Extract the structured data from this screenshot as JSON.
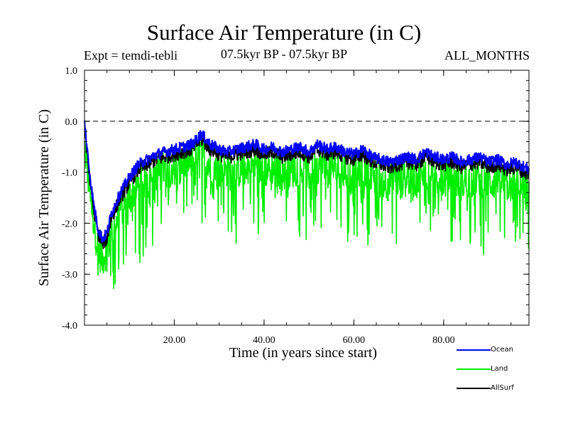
{
  "header": {
    "title": "Surface Air Temperature (in C)",
    "experiment": "Expt = temdi-tebli",
    "period": "07.5kyr BP - 07.5kyr BP",
    "months": "ALL_MONTHS"
  },
  "chart_data": {
    "type": "line",
    "title": "Surface Air Temperature (in C)",
    "xlabel": "Time (in years since start)",
    "ylabel": "Surface Air Temperature (in C)",
    "xlim": [
      0,
      99
    ],
    "ylim": [
      -4.0,
      1.0
    ],
    "x_ticks": [
      20,
      40,
      60,
      80
    ],
    "x_tick_labels": [
      "20.00",
      "40.00",
      "60.00",
      "80.00"
    ],
    "y_ticks": [
      1.0,
      0.0,
      -1.0,
      -2.0,
      -3.0,
      -4.0
    ],
    "y_tick_labels": [
      "1.0",
      "0.0",
      "-1.0",
      "-2.0",
      "-3.0",
      "-4.0"
    ],
    "reference_line": 0.0,
    "legend_position": "bottom-right",
    "series": [
      {
        "name": "Ocean",
        "color": "#0000ff",
        "x": [
          0,
          1,
          2,
          3,
          4,
          5,
          6,
          8,
          10,
          12,
          14,
          16,
          18,
          20,
          22,
          24,
          26,
          28,
          30,
          32,
          34,
          36,
          38,
          40,
          42,
          44,
          46,
          48,
          50,
          52,
          54,
          56,
          58,
          60,
          62,
          64,
          66,
          68,
          70,
          72,
          74,
          76,
          78,
          80,
          82,
          84,
          86,
          88,
          90,
          92,
          94,
          96,
          98,
          99
        ],
        "values": [
          0.0,
          -0.9,
          -1.6,
          -2.1,
          -2.3,
          -2.2,
          -1.8,
          -1.4,
          -1.1,
          -0.85,
          -0.75,
          -0.65,
          -0.6,
          -0.55,
          -0.5,
          -0.45,
          -0.25,
          -0.45,
          -0.55,
          -0.6,
          -0.55,
          -0.5,
          -0.45,
          -0.55,
          -0.5,
          -0.6,
          -0.55,
          -0.5,
          -0.6,
          -0.45,
          -0.55,
          -0.5,
          -0.6,
          -0.65,
          -0.55,
          -0.7,
          -0.75,
          -0.8,
          -0.75,
          -0.7,
          -0.75,
          -0.6,
          -0.7,
          -0.75,
          -0.7,
          -0.8,
          -0.75,
          -0.7,
          -0.8,
          -0.75,
          -0.85,
          -0.8,
          -0.9,
          -0.95
        ],
        "noise": 0.22
      },
      {
        "name": "Land",
        "color": "#00ee00",
        "x": [
          0,
          1,
          2,
          3,
          4,
          5,
          6,
          8,
          10,
          12,
          14,
          16,
          18,
          20,
          22,
          24,
          26,
          28,
          30,
          32,
          34,
          36,
          38,
          40,
          42,
          44,
          46,
          48,
          50,
          52,
          54,
          56,
          58,
          60,
          62,
          64,
          66,
          68,
          70,
          72,
          74,
          76,
          78,
          80,
          82,
          84,
          86,
          88,
          90,
          92,
          94,
          96,
          98,
          99
        ],
        "values": [
          -0.5,
          -1.2,
          -1.9,
          -2.5,
          -2.7,
          -2.5,
          -2.2,
          -1.7,
          -1.5,
          -1.25,
          -1.1,
          -1.0,
          -0.95,
          -0.9,
          -0.85,
          -0.8,
          -0.6,
          -0.85,
          -0.95,
          -1.0,
          -0.95,
          -0.9,
          -0.85,
          -0.95,
          -0.9,
          -1.0,
          -0.95,
          -0.9,
          -1.0,
          -0.85,
          -0.95,
          -0.9,
          -1.0,
          -1.05,
          -0.95,
          -1.1,
          -1.15,
          -1.2,
          -1.15,
          -1.1,
          -1.15,
          -1.0,
          -1.1,
          -1.15,
          -1.1,
          -1.2,
          -1.15,
          -1.1,
          -1.2,
          -1.15,
          -1.25,
          -1.2,
          -1.3,
          -1.35
        ],
        "noise": 0.75,
        "min": -3.4,
        "max": 0.25
      },
      {
        "name": "AllSurf",
        "color": "#000000",
        "x": [
          0,
          1,
          2,
          3,
          4,
          5,
          6,
          8,
          10,
          12,
          14,
          16,
          18,
          20,
          22,
          24,
          26,
          28,
          30,
          32,
          34,
          36,
          38,
          40,
          42,
          44,
          46,
          48,
          50,
          52,
          54,
          56,
          58,
          60,
          62,
          64,
          66,
          68,
          70,
          72,
          74,
          76,
          78,
          80,
          82,
          84,
          86,
          88,
          90,
          92,
          94,
          96,
          98,
          99
        ],
        "values": [
          -0.1,
          -1.0,
          -1.7,
          -2.2,
          -2.4,
          -2.3,
          -1.9,
          -1.5,
          -1.2,
          -0.95,
          -0.85,
          -0.75,
          -0.7,
          -0.65,
          -0.6,
          -0.55,
          -0.35,
          -0.55,
          -0.65,
          -0.7,
          -0.65,
          -0.6,
          -0.55,
          -0.65,
          -0.6,
          -0.7,
          -0.65,
          -0.6,
          -0.7,
          -0.55,
          -0.65,
          -0.6,
          -0.7,
          -0.75,
          -0.65,
          -0.8,
          -0.85,
          -0.9,
          -0.85,
          -0.8,
          -0.85,
          -0.7,
          -0.8,
          -0.85,
          -0.8,
          -0.9,
          -0.85,
          -0.8,
          -0.9,
          -0.85,
          -0.95,
          -0.9,
          -1.0,
          -1.05
        ],
        "noise": 0.28
      }
    ]
  }
}
